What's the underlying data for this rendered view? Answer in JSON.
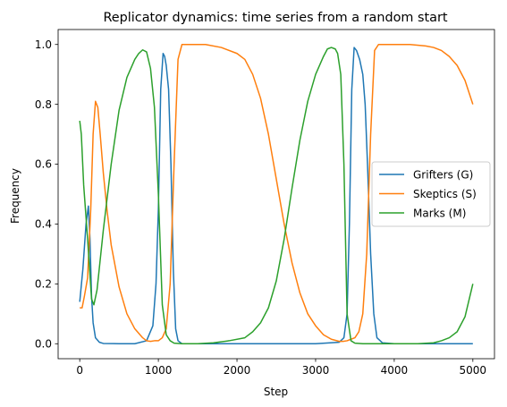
{
  "chart_data": {
    "type": "line",
    "title": "Replicator dynamics: time series from a random start",
    "xlabel": "Step",
    "ylabel": "Frequency",
    "xlim": [
      -275,
      5275
    ],
    "ylim": [
      -0.05,
      1.05
    ],
    "xticks": [
      0,
      1000,
      2000,
      3000,
      4000,
      5000
    ],
    "xtick_labels": [
      "0",
      "1000",
      "2000",
      "3000",
      "4000",
      "5000"
    ],
    "yticks": [
      0.0,
      0.2,
      0.4,
      0.6,
      0.8,
      1.0
    ],
    "ytick_labels": [
      "0.0",
      "0.2",
      "0.4",
      "0.6",
      "0.8",
      "1.0"
    ],
    "grid": false,
    "legend_position": "center right",
    "series": [
      {
        "name": "Grifters (G)",
        "color": "#1f77b4",
        "x": [
          0,
          40,
          80,
          110,
          130,
          150,
          170,
          200,
          250,
          300,
          500,
          700,
          850,
          930,
          970,
          1000,
          1030,
          1060,
          1080,
          1100,
          1130,
          1160,
          1190,
          1220,
          1250,
          1300,
          1400,
          2000,
          3000,
          3300,
          3360,
          3400,
          3430,
          3460,
          3490,
          3520,
          3560,
          3600,
          3630,
          3660,
          3700,
          3740,
          3780,
          3850,
          4000,
          5000
        ],
        "y": [
          0.14,
          0.25,
          0.4,
          0.46,
          0.35,
          0.16,
          0.07,
          0.02,
          0.005,
          0.001,
          0.0,
          0.0,
          0.01,
          0.06,
          0.2,
          0.45,
          0.85,
          0.97,
          0.96,
          0.93,
          0.85,
          0.6,
          0.25,
          0.05,
          0.01,
          0.0,
          0.0,
          0.0,
          0.0,
          0.005,
          0.02,
          0.1,
          0.4,
          0.85,
          0.99,
          0.98,
          0.95,
          0.9,
          0.8,
          0.6,
          0.3,
          0.1,
          0.02,
          0.003,
          0.0,
          0.0
        ]
      },
      {
        "name": "Skeptics (S)",
        "color": "#ff7f0e",
        "x": [
          0,
          30,
          60,
          100,
          140,
          170,
          200,
          230,
          260,
          300,
          350,
          400,
          500,
          600,
          700,
          800,
          850,
          900,
          950,
          1000,
          1050,
          1100,
          1150,
          1200,
          1250,
          1300,
          1400,
          1600,
          1800,
          2000,
          2100,
          2200,
          2300,
          2400,
          2500,
          2600,
          2700,
          2800,
          2900,
          3000,
          3100,
          3200,
          3300,
          3350,
          3400,
          3450,
          3500,
          3550,
          3600,
          3650,
          3700,
          3750,
          3800,
          3850,
          3900,
          4000,
          4200,
          4400,
          4500,
          4600,
          4700,
          4800,
          4900,
          5000
        ],
        "y": [
          0.12,
          0.12,
          0.16,
          0.22,
          0.45,
          0.7,
          0.81,
          0.79,
          0.7,
          0.57,
          0.44,
          0.33,
          0.19,
          0.1,
          0.05,
          0.02,
          0.01,
          0.008,
          0.01,
          0.01,
          0.02,
          0.05,
          0.2,
          0.6,
          0.95,
          1.0,
          1.0,
          1.0,
          0.99,
          0.97,
          0.95,
          0.9,
          0.82,
          0.7,
          0.55,
          0.4,
          0.27,
          0.17,
          0.1,
          0.06,
          0.03,
          0.015,
          0.008,
          0.008,
          0.01,
          0.015,
          0.02,
          0.04,
          0.1,
          0.3,
          0.7,
          0.98,
          1.0,
          1.0,
          1.0,
          1.0,
          1.0,
          0.995,
          0.99,
          0.98,
          0.96,
          0.93,
          0.88,
          0.8
        ]
      },
      {
        "name": "Marks (M)",
        "color": "#2ca02c",
        "x": [
          0,
          20,
          50,
          100,
          150,
          180,
          220,
          300,
          400,
          500,
          600,
          700,
          750,
          800,
          850,
          900,
          950,
          1000,
          1050,
          1100,
          1150,
          1200,
          1300,
          1500,
          1700,
          1900,
          2100,
          2200,
          2300,
          2400,
          2500,
          2600,
          2700,
          2800,
          2900,
          3000,
          3100,
          3150,
          3200,
          3250,
          3280,
          3320,
          3360,
          3400,
          3450,
          3500,
          3600,
          4000,
          4300,
          4500,
          4600,
          4700,
          4800,
          4900,
          5000
        ],
        "y": [
          0.745,
          0.7,
          0.53,
          0.35,
          0.15,
          0.13,
          0.18,
          0.38,
          0.6,
          0.78,
          0.89,
          0.95,
          0.97,
          0.982,
          0.975,
          0.92,
          0.79,
          0.5,
          0.13,
          0.03,
          0.01,
          0.002,
          0.0,
          0.0,
          0.003,
          0.01,
          0.02,
          0.04,
          0.07,
          0.12,
          0.21,
          0.35,
          0.52,
          0.68,
          0.81,
          0.9,
          0.96,
          0.985,
          0.99,
          0.985,
          0.97,
          0.9,
          0.6,
          0.1,
          0.01,
          0.002,
          0.0,
          0.0,
          0.0,
          0.003,
          0.01,
          0.02,
          0.04,
          0.09,
          0.2
        ]
      }
    ]
  }
}
